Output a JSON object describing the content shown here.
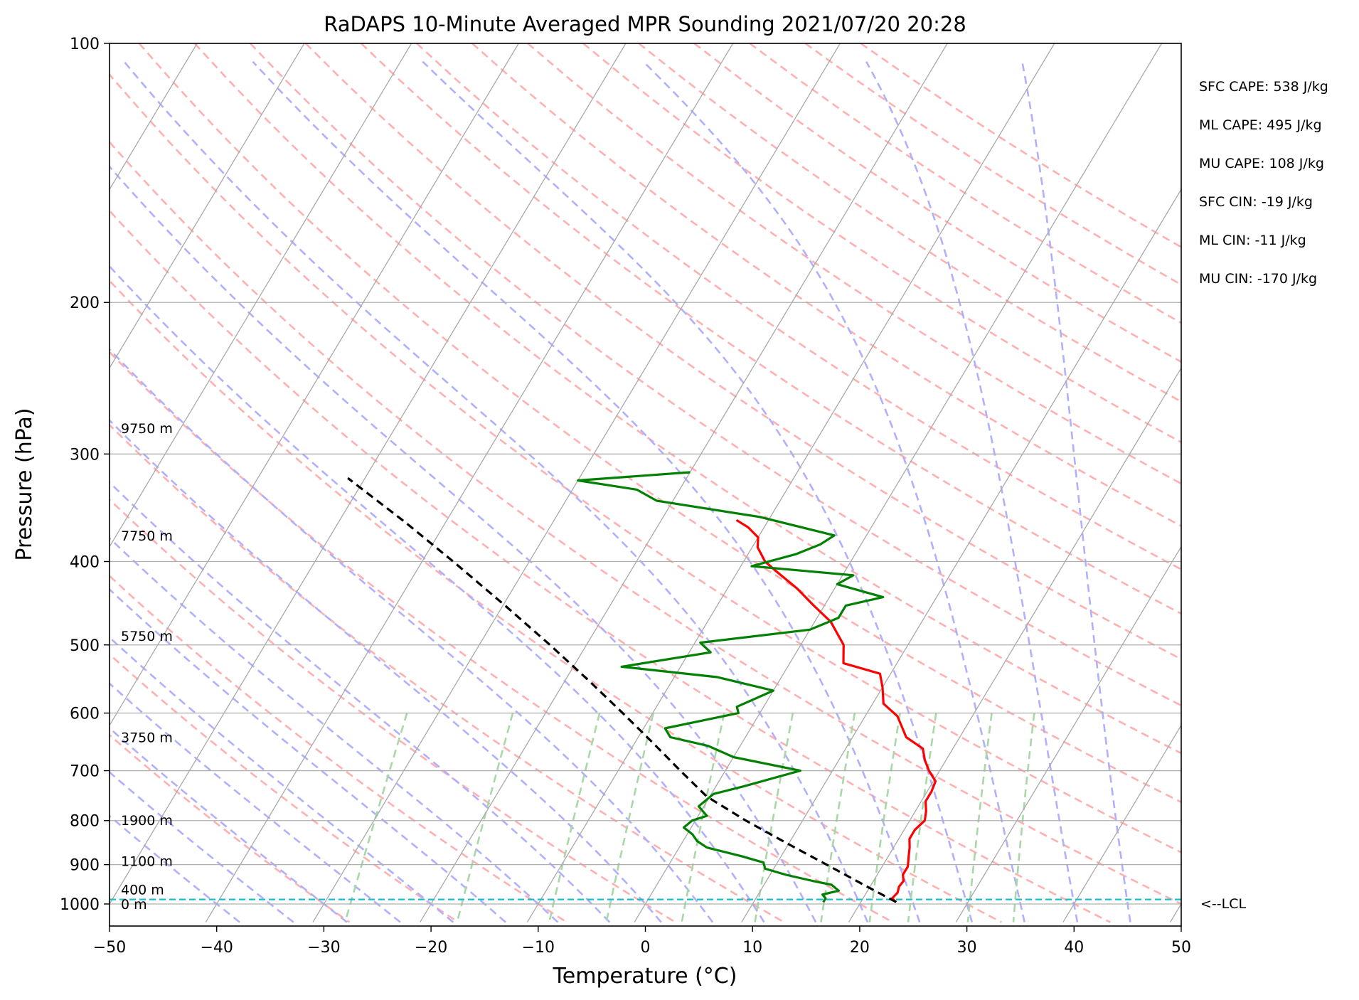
{
  "chart_data": {
    "type": "line",
    "title": "RaDAPS 10-Minute Averaged MPR Sounding 2021/07/20 20:28",
    "xlabel": "Temperature (°C)",
    "ylabel": "Pressure (hPa)",
    "xlim": [
      -50,
      50
    ],
    "ylim": [
      1050,
      100
    ],
    "y_scale": "log",
    "skew": true,
    "x_ticks": [
      {
        "value": -50,
        "label": "−50"
      },
      {
        "value": -40,
        "label": "−40"
      },
      {
        "value": -30,
        "label": "−30"
      },
      {
        "value": -20,
        "label": "−20"
      },
      {
        "value": -10,
        "label": "−10"
      },
      {
        "value": 0,
        "label": "0"
      },
      {
        "value": 10,
        "label": "10"
      },
      {
        "value": 20,
        "label": "20"
      },
      {
        "value": 30,
        "label": "30"
      },
      {
        "value": 40,
        "label": "40"
      },
      {
        "value": 50,
        "label": "50"
      }
    ],
    "y_ticks": [
      {
        "value": 100,
        "label": "100"
      },
      {
        "value": 200,
        "label": "200"
      },
      {
        "value": 300,
        "label": "300"
      },
      {
        "value": 400,
        "label": "400"
      },
      {
        "value": 500,
        "label": "500"
      },
      {
        "value": 600,
        "label": "600"
      },
      {
        "value": 700,
        "label": "700"
      },
      {
        "value": 800,
        "label": "800"
      },
      {
        "value": 900,
        "label": "900"
      },
      {
        "value": 1000,
        "label": "1000"
      }
    ],
    "grid": true,
    "series": [
      {
        "role": "temperature",
        "color": "#ff0000",
        "points": [
          {
            "p": 995,
            "t": 23.3
          },
          {
            "p": 985,
            "t": 22.7
          },
          {
            "p": 970,
            "t": 22.9
          },
          {
            "p": 955,
            "t": 22.7
          },
          {
            "p": 940,
            "t": 22.8
          },
          {
            "p": 925,
            "t": 22.4
          },
          {
            "p": 905,
            "t": 22.4
          },
          {
            "p": 880,
            "t": 21.9
          },
          {
            "p": 860,
            "t": 21.5
          },
          {
            "p": 840,
            "t": 21.0
          },
          {
            "p": 820,
            "t": 21.0
          },
          {
            "p": 800,
            "t": 21.4
          },
          {
            "p": 780,
            "t": 21.0
          },
          {
            "p": 760,
            "t": 20.4
          },
          {
            "p": 740,
            "t": 20.4
          },
          {
            "p": 720,
            "t": 20.2
          },
          {
            "p": 700,
            "t": 19.0
          },
          {
            "p": 680,
            "t": 18.0
          },
          {
            "p": 660,
            "t": 17.2
          },
          {
            "p": 640,
            "t": 15.0
          },
          {
            "p": 605,
            "t": 13.0
          },
          {
            "p": 585,
            "t": 11.0
          },
          {
            "p": 560,
            "t": 10.0
          },
          {
            "p": 540,
            "t": 9.0
          },
          {
            "p": 525,
            "t": 5.0
          },
          {
            "p": 500,
            "t": 4.0
          },
          {
            "p": 470,
            "t": 1.5
          },
          {
            "p": 450,
            "t": -1.0
          },
          {
            "p": 430,
            "t": -3.5
          },
          {
            "p": 410,
            "t": -6.5
          },
          {
            "p": 400,
            "t": -8.0
          },
          {
            "p": 385,
            "t": -9.5
          },
          {
            "p": 375,
            "t": -10.0
          },
          {
            "p": 365,
            "t": -11.5
          },
          {
            "p": 358,
            "t": -13.0
          }
        ]
      },
      {
        "role": "dewpoint",
        "color": "#008000",
        "points": [
          {
            "p": 995,
            "t": 16.5
          },
          {
            "p": 985,
            "t": 16.5
          },
          {
            "p": 975,
            "t": 16.0
          },
          {
            "p": 965,
            "t": 17.3
          },
          {
            "p": 950,
            "t": 16.3
          },
          {
            "p": 940,
            "t": 14.3
          },
          {
            "p": 925,
            "t": 11.5
          },
          {
            "p": 910,
            "t": 9.2
          },
          {
            "p": 895,
            "t": 8.7
          },
          {
            "p": 880,
            "t": 6.3
          },
          {
            "p": 860,
            "t": 2.6
          },
          {
            "p": 845,
            "t": 1.3
          },
          {
            "p": 830,
            "t": 0.5
          },
          {
            "p": 815,
            "t": -0.7
          },
          {
            "p": 800,
            "t": -0.3
          },
          {
            "p": 790,
            "t": 0.8
          },
          {
            "p": 770,
            "t": -0.5
          },
          {
            "p": 745,
            "t": 0.2
          },
          {
            "p": 730,
            "t": 2.6
          },
          {
            "p": 710,
            "t": 5.5
          },
          {
            "p": 700,
            "t": 7.0
          },
          {
            "p": 675,
            "t": 0.0
          },
          {
            "p": 655,
            "t": -3.0
          },
          {
            "p": 640,
            "t": -7.0
          },
          {
            "p": 625,
            "t": -8.0
          },
          {
            "p": 600,
            "t": -2.0
          },
          {
            "p": 590,
            "t": -2.5
          },
          {
            "p": 565,
            "t": 0.0
          },
          {
            "p": 545,
            "t": -6.0
          },
          {
            "p": 530,
            "t": -15.5
          },
          {
            "p": 510,
            "t": -8.0
          },
          {
            "p": 497,
            "t": -9.5
          },
          {
            "p": 480,
            "t": 0.0
          },
          {
            "p": 465,
            "t": 2.0
          },
          {
            "p": 450,
            "t": 2.0
          },
          {
            "p": 440,
            "t": 5.0
          },
          {
            "p": 425,
            "t": 0.0
          },
          {
            "p": 415,
            "t": 1.0
          },
          {
            "p": 405,
            "t": -9.0
          },
          {
            "p": 392,
            "t": -5.5
          },
          {
            "p": 382,
            "t": -3.8
          },
          {
            "p": 373,
            "t": -3.0
          },
          {
            "p": 355,
            "t": -11.0
          },
          {
            "p": 340,
            "t": -21.5
          },
          {
            "p": 330,
            "t": -24.0
          },
          {
            "p": 322,
            "t": -30.0
          },
          {
            "p": 315,
            "t": -20.0
          }
        ]
      },
      {
        "role": "parcel",
        "color": "#000000",
        "style": "dashed",
        "points": [
          {
            "p": 995,
            "t": 23.3
          },
          {
            "p": 950,
            "t": 19.3
          },
          {
            "p": 900,
            "t": 14.7
          },
          {
            "p": 850,
            "t": 9.8
          },
          {
            "p": 800,
            "t": 4.7
          },
          {
            "p": 750,
            "t": -0.3
          },
          {
            "p": 700,
            "t": -4.2
          },
          {
            "p": 650,
            "t": -8.3
          },
          {
            "p": 600,
            "t": -12.8
          },
          {
            "p": 550,
            "t": -17.8
          },
          {
            "p": 500,
            "t": -23.4
          },
          {
            "p": 450,
            "t": -29.8
          },
          {
            "p": 400,
            "t": -37.1
          },
          {
            "p": 360,
            "t": -43.8
          },
          {
            "p": 320,
            "t": -51.6
          }
        ]
      }
    ],
    "lcl_pressure": 988,
    "lcl_label": "<--LCL",
    "height_labels": [
      {
        "p": 1000,
        "label": "0 m"
      },
      {
        "p": 962,
        "label": "400 m"
      },
      {
        "p": 891,
        "label": "1100 m"
      },
      {
        "p": 799,
        "label": "1900 m"
      },
      {
        "p": 640,
        "label": "3750 m"
      },
      {
        "p": 488,
        "label": "5750 m"
      },
      {
        "p": 373,
        "label": "7750 m"
      },
      {
        "p": 280,
        "label": "9750 m"
      }
    ],
    "annotations": [
      "SFC CAPE: 538 J/kg",
      "ML CAPE: 495 J/kg",
      "MU CAPE: 108 J/kg",
      "SFC CIN: -19 J/kg",
      "ML CIN: -11 J/kg",
      "MU CIN: -170 J/kg"
    ],
    "colors": {
      "temperature": "#ff0000",
      "dewpoint": "#008000",
      "parcel": "#000000",
      "isotherm": "#a9a9a9",
      "dry_adiabat": "#ffb0b0",
      "moist_adiabat": "#b0b0ff",
      "mixing_ratio": "#a8d8a8",
      "lcl_line": "#17becf"
    }
  }
}
